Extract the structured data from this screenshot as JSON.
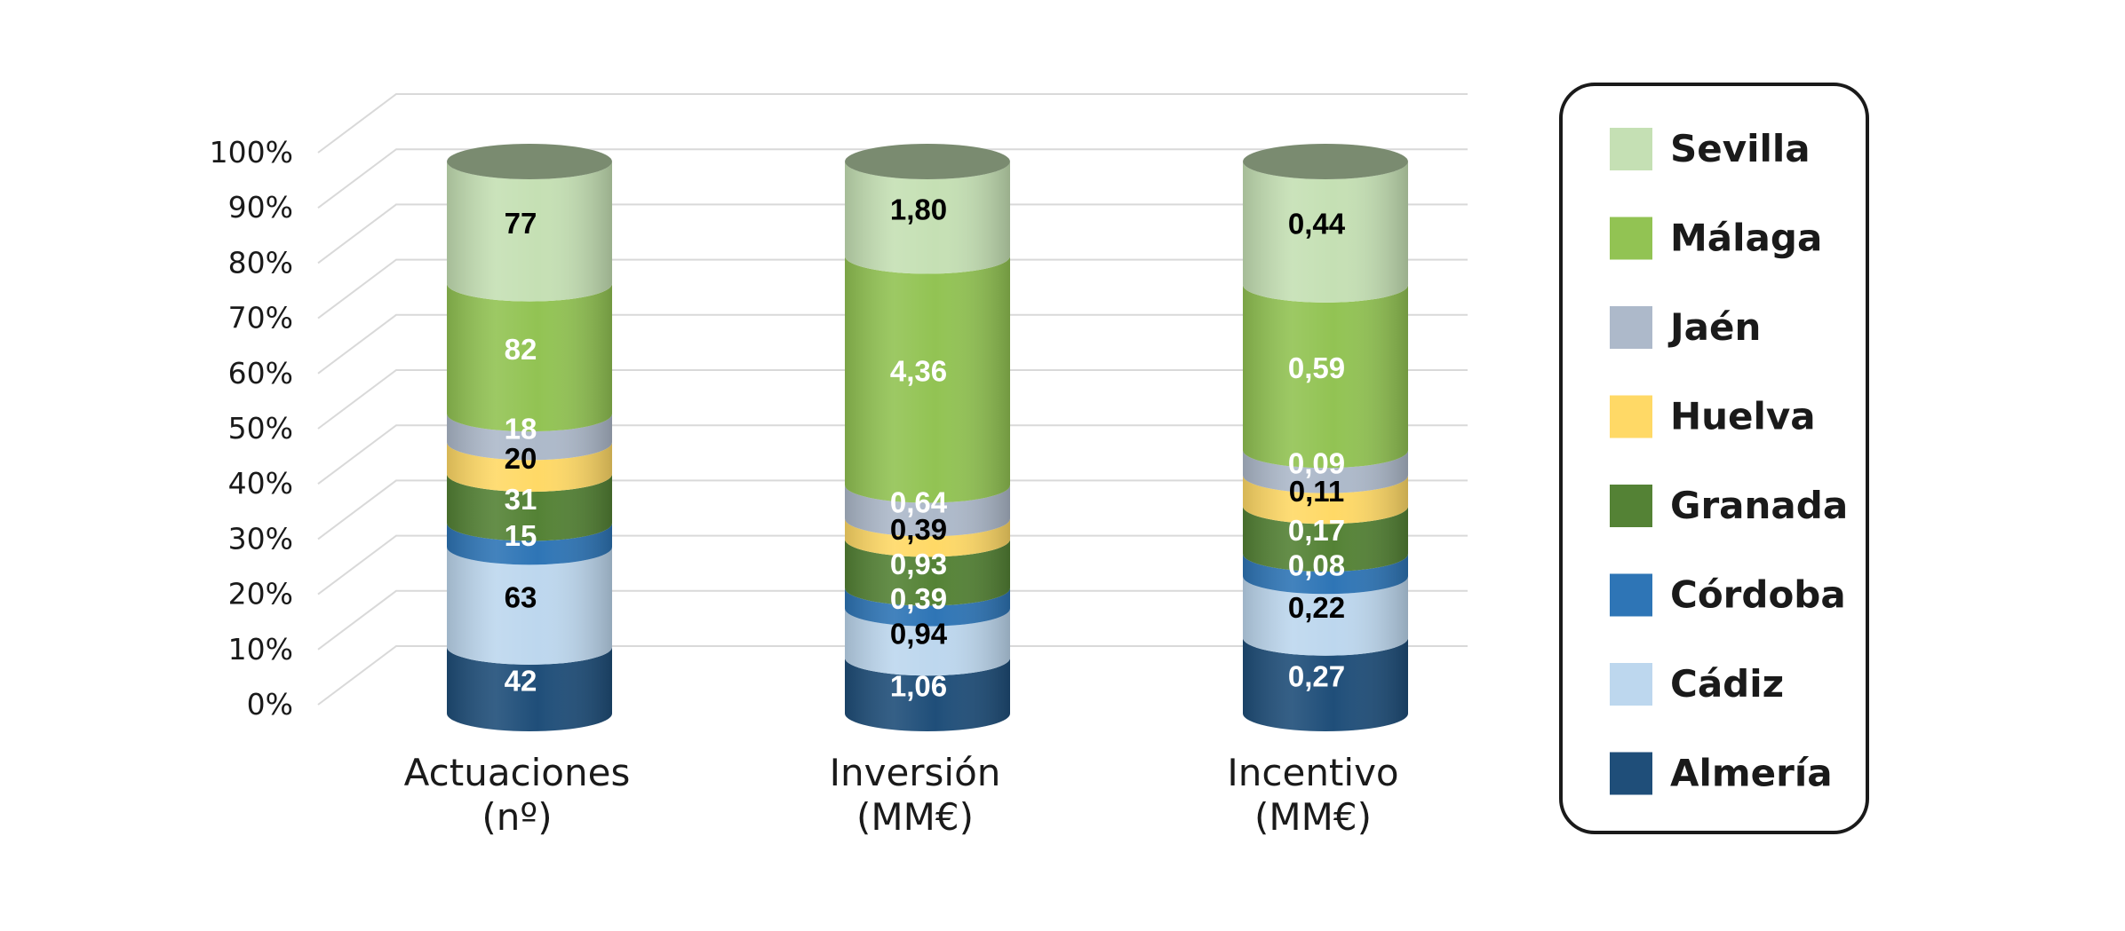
{
  "chart_data": {
    "type": "bar",
    "stacked": "percent",
    "style": "3d-cylinder",
    "categories": [
      {
        "line1": "Actuaciones",
        "line2": "(nº)"
      },
      {
        "line1": "Inversión",
        "line2": "(MM€)"
      },
      {
        "line1": "Incentivo",
        "line2": "(MM€)"
      }
    ],
    "yticks": [
      "0%",
      "10%",
      "20%",
      "30%",
      "40%",
      "50%",
      "60%",
      "70%",
      "80%",
      "90%",
      "100%"
    ],
    "ylim": [
      0,
      100
    ],
    "grid": true,
    "legend_position": "right",
    "series": [
      {
        "name": "Almería",
        "color": "#1f4e79",
        "label_color": "#ffffff",
        "values": [
          42,
          1.06,
          0.27
        ],
        "labels": [
          "42",
          "1,06",
          "0,27"
        ]
      },
      {
        "name": "Cádiz",
        "color": "#bdd7ee",
        "label_color": "#000000",
        "values": [
          63,
          0.94,
          0.22
        ],
        "labels": [
          "63",
          "0,94",
          "0,22"
        ]
      },
      {
        "name": "Córdoba",
        "color": "#2e75b6",
        "label_color": "#ffffff",
        "values": [
          15,
          0.39,
          0.08
        ],
        "labels": [
          "15",
          "0,39",
          "0,08"
        ]
      },
      {
        "name": "Granada",
        "color": "#548235",
        "label_color": "#ffffff",
        "values": [
          31,
          0.93,
          0.17
        ],
        "labels": [
          "31",
          "0,93",
          "0,17"
        ]
      },
      {
        "name": "Huelva",
        "color": "#ffd966",
        "label_color": "#000000",
        "values": [
          20,
          0.39,
          0.11
        ],
        "labels": [
          "20",
          "0,39",
          "0,11"
        ]
      },
      {
        "name": "Jaén",
        "color": "#adb9ca",
        "label_color": "#ffffff",
        "values": [
          18,
          0.64,
          0.09
        ],
        "labels": [
          "18",
          "0,64",
          "0,09"
        ]
      },
      {
        "name": "Málaga",
        "color": "#92c353",
        "label_color": "#ffffff",
        "values": [
          82,
          4.36,
          0.59
        ],
        "labels": [
          "82",
          "4,36",
          "0,59"
        ]
      },
      {
        "name": "Sevilla",
        "color": "#c5e0b4",
        "label_color": "#000000",
        "values": [
          77,
          1.8,
          0.44
        ],
        "labels": [
          "77",
          "1,80",
          "0,44"
        ]
      }
    ],
    "legend_order": [
      "Sevilla",
      "Málaga",
      "Jaén",
      "Huelva",
      "Granada",
      "Córdoba",
      "Cádiz",
      "Almería"
    ]
  }
}
